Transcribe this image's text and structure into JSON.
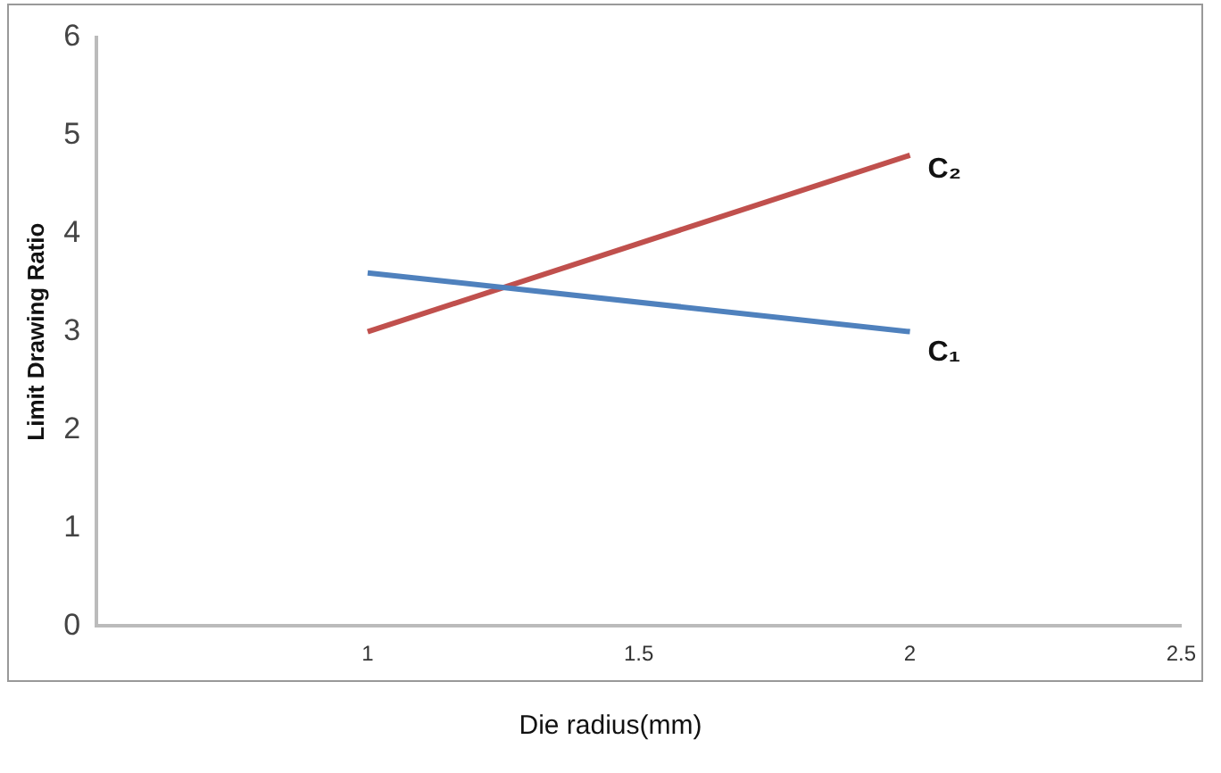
{
  "chart_data": {
    "type": "line",
    "xlabel": "Die radius(mm)",
    "ylabel": "Limit Drawing Ratio",
    "x": [
      1,
      2
    ],
    "series": [
      {
        "name": "C₁",
        "color": "#4f81bd",
        "values": [
          3.6,
          3.0
        ]
      },
      {
        "name": "C₂",
        "color": "#c0504d",
        "values": [
          3.0,
          4.8
        ]
      }
    ],
    "xlim": [
      0.5,
      2.5
    ],
    "xticks": [
      1,
      1.5,
      2,
      2.5
    ],
    "ylim": [
      0,
      6
    ],
    "yticks": [
      0,
      1,
      2,
      3,
      4,
      5,
      6
    ],
    "grid": false,
    "legend": false,
    "marker": "none",
    "line_style": "solid"
  }
}
